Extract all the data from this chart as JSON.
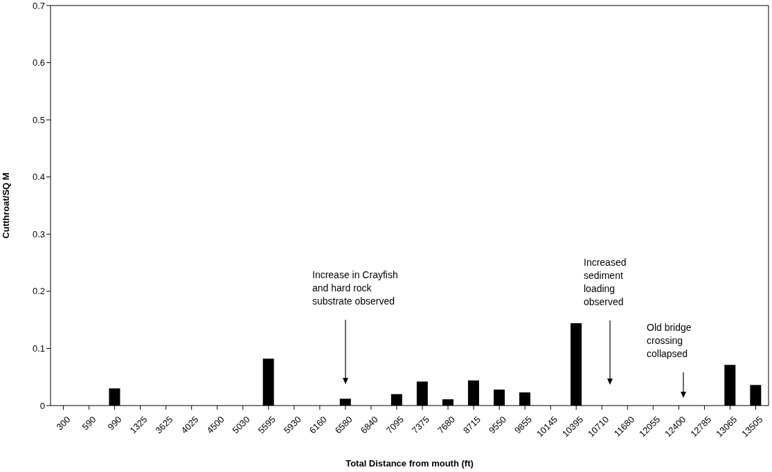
{
  "chart_data": {
    "type": "bar",
    "xlabel": "Total Distance from mouth (ft)",
    "ylabel": "Cutthroat/SQ M",
    "categories": [
      "300",
      "590",
      "990",
      "1325",
      "3625",
      "4025",
      "4500",
      "5030",
      "5595",
      "5930",
      "6160",
      "6580",
      "6840",
      "7095",
      "7375",
      "7680",
      "8715",
      "9550",
      "9855",
      "10145",
      "10395",
      "10710",
      "11680",
      "12055",
      "12400",
      "12785",
      "13065",
      "13505"
    ],
    "values": [
      0,
      0,
      0.03,
      0,
      0,
      0,
      0,
      0,
      0.082,
      0,
      0,
      0.012,
      0,
      0.02,
      0.042,
      0.011,
      0.044,
      0.028,
      0.023,
      0,
      0.144,
      0,
      0,
      0,
      0,
      0,
      0.071,
      0.036
    ],
    "color": "#000000",
    "ylim": [
      0,
      0.7
    ],
    "yticks": [
      0,
      0.1,
      0.2,
      0.3,
      0.4,
      0.5,
      0.6,
      0.7
    ],
    "grid": false,
    "legend": false,
    "annotations": [
      "Increase in Crayfish\nand hard rock\nsubstrate observed",
      "Increased\nsediment\nloading\nobserved",
      "Old bridge\ncrossing\ncollapsed"
    ]
  }
}
